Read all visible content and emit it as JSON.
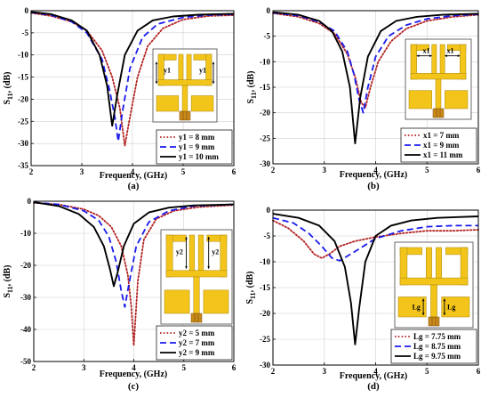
{
  "colors": {
    "series": [
      "#b22222",
      "#1a1aee",
      "#000000"
    ],
    "gold": "#f3c51b",
    "goldEdge": "#a8860c",
    "feed": "#c9891a"
  },
  "chart_data": [
    {
      "id": "a",
      "type": "line",
      "panel_label": "(a)",
      "xlabel": "Frequency, (GHz)",
      "ylabel": "S11, (dB)",
      "xlim": [
        2,
        6
      ],
      "ylim": [
        -35,
        0
      ],
      "xticks": [
        2,
        3,
        4,
        5,
        6
      ],
      "yticks": [
        0,
        -5,
        -10,
        -15,
        -20,
        -25,
        -30,
        -35
      ],
      "grid": true,
      "legend_position": "bottom-right",
      "inset_label": "y1",
      "series": [
        {
          "name": "y1 = 8 mm",
          "style": "dotted",
          "x": [
            2,
            2.4,
            2.8,
            3.1,
            3.4,
            3.6,
            3.75,
            3.85,
            3.95,
            4.1,
            4.3,
            4.6,
            5,
            5.5,
            6
          ],
          "y": [
            -0.5,
            -1.2,
            -2.5,
            -4.5,
            -9,
            -15,
            -22,
            -30.5,
            -24,
            -15,
            -8,
            -4,
            -2,
            -1.2,
            -1
          ]
        },
        {
          "name": "y1 = 9 mm",
          "style": "dashed",
          "x": [
            2,
            2.4,
            2.8,
            3.1,
            3.4,
            3.55,
            3.65,
            3.72,
            3.8,
            3.95,
            4.2,
            4.5,
            5,
            5.5,
            6
          ],
          "y": [
            -0.4,
            -1,
            -2.5,
            -5,
            -11,
            -18,
            -24,
            -29.5,
            -23,
            -13,
            -6,
            -3,
            -1.5,
            -1,
            -0.8
          ]
        },
        {
          "name": "y1 = 10 mm",
          "style": "solid",
          "x": [
            2,
            2.4,
            2.8,
            3.1,
            3.35,
            3.5,
            3.6,
            3.7,
            3.85,
            4.1,
            4.4,
            4.8,
            5.3,
            6
          ],
          "y": [
            -0.3,
            -0.8,
            -2.2,
            -4.5,
            -10,
            -17,
            -26,
            -19,
            -10,
            -4.5,
            -2.2,
            -1.3,
            -0.9,
            -0.7
          ]
        }
      ]
    },
    {
      "id": "b",
      "type": "line",
      "panel_label": "(b)",
      "xlabel": "Frequency, (GHz)",
      "ylabel": "S11, (dB)",
      "xlim": [
        2,
        6
      ],
      "ylim": [
        -30,
        0
      ],
      "xticks": [
        2,
        3,
        4,
        5,
        6
      ],
      "yticks": [
        0,
        -5,
        -10,
        -15,
        -20,
        -25,
        -30
      ],
      "grid": true,
      "legend_position": "bottom-right",
      "inset_label": "x1",
      "series": [
        {
          "name": "x1 = 7 mm",
          "style": "dotted",
          "x": [
            2,
            2.5,
            2.9,
            3.2,
            3.45,
            3.6,
            3.72,
            3.8,
            3.9,
            4.05,
            4.3,
            4.6,
            5,
            5.5,
            6
          ],
          "y": [
            -0.5,
            -1.2,
            -2.5,
            -4.5,
            -8.5,
            -13,
            -18,
            -19,
            -15,
            -10,
            -6,
            -3.5,
            -2,
            -1.2,
            -0.8
          ]
        },
        {
          "name": "x1 = 9 mm",
          "style": "dashed",
          "x": [
            2,
            2.5,
            2.9,
            3.2,
            3.45,
            3.58,
            3.68,
            3.76,
            3.85,
            4,
            4.25,
            4.6,
            5,
            5.5,
            6
          ],
          "y": [
            -0.4,
            -1,
            -2.2,
            -4,
            -8,
            -12.5,
            -17.5,
            -20,
            -15,
            -9,
            -5,
            -2.8,
            -1.6,
            -1,
            -0.7
          ]
        },
        {
          "name": "x1 = 11 mm",
          "style": "solid",
          "x": [
            2,
            2.5,
            2.9,
            3.15,
            3.35,
            3.5,
            3.6,
            3.7,
            3.85,
            4.1,
            4.4,
            4.8,
            5.3,
            6
          ],
          "y": [
            -0.3,
            -0.8,
            -2,
            -4,
            -8,
            -15,
            -26,
            -17,
            -9,
            -4,
            -2,
            -1.2,
            -0.8,
            -0.6
          ]
        }
      ]
    },
    {
      "id": "c",
      "type": "line",
      "panel_label": "(c)",
      "xlabel": "Frequency, (GHz)",
      "ylabel": "S11, (dB)",
      "xlim": [
        2,
        6
      ],
      "ylim": [
        -50,
        0
      ],
      "xticks": [
        2,
        3,
        4,
        5,
        6
      ],
      "yticks": [
        0,
        -10,
        -20,
        -30,
        -40,
        -50
      ],
      "grid": true,
      "legend_position": "bottom-right",
      "inset_label": "y2",
      "series": [
        {
          "name": "y2 = 5 mm",
          "style": "dotted",
          "x": [
            2,
            2.5,
            3,
            3.3,
            3.55,
            3.75,
            3.88,
            3.95,
            4,
            4.08,
            4.2,
            4.45,
            4.8,
            5.3,
            6
          ],
          "y": [
            -0.5,
            -1,
            -2.5,
            -4.5,
            -8,
            -14,
            -23,
            -33,
            -45,
            -25,
            -12,
            -5.5,
            -3,
            -1.8,
            -1.2
          ]
        },
        {
          "name": "y2 = 7 mm",
          "style": "dashed",
          "x": [
            2,
            2.5,
            3,
            3.3,
            3.5,
            3.65,
            3.75,
            3.82,
            3.9,
            4.05,
            4.3,
            4.7,
            5.2,
            6
          ],
          "y": [
            -0.4,
            -1,
            -3,
            -6,
            -11,
            -19,
            -28,
            -33,
            -26,
            -14,
            -6.5,
            -3,
            -1.5,
            -1
          ]
        },
        {
          "name": "y2 = 9 mm",
          "style": "solid",
          "x": [
            2,
            2.5,
            2.9,
            3.2,
            3.4,
            3.52,
            3.6,
            3.68,
            3.8,
            4,
            4.3,
            4.7,
            5.2,
            6
          ],
          "y": [
            -0.3,
            -1.5,
            -4,
            -8,
            -14,
            -21,
            -26.5,
            -22,
            -14,
            -7,
            -3.5,
            -2,
            -1.3,
            -1
          ]
        }
      ]
    },
    {
      "id": "d",
      "type": "line",
      "panel_label": "(d)",
      "xlabel": "Frequency, (GHz)",
      "ylabel": "S11, (dB)",
      "xlim": [
        2,
        6
      ],
      "ylim": [
        -30,
        0
      ],
      "xticks": [
        2,
        3,
        4,
        5,
        6
      ],
      "yticks": [
        0,
        -5,
        -10,
        -15,
        -20,
        -25,
        -30
      ],
      "grid": true,
      "legend_position": "bottom-right",
      "inset_label": "Lg",
      "series": [
        {
          "name": "Lg = 7.75 mm",
          "style": "dotted",
          "x": [
            2,
            2.3,
            2.6,
            2.8,
            2.95,
            3.1,
            3.3,
            3.6,
            4,
            4.5,
            5,
            5.5,
            6
          ],
          "y": [
            -2,
            -3.5,
            -6,
            -8.5,
            -9.3,
            -8.5,
            -7,
            -6,
            -5.2,
            -4.5,
            -4,
            -4,
            -3.8
          ]
        },
        {
          "name": "Lg = 8.75 mm",
          "style": "dashed",
          "x": [
            2,
            2.4,
            2.7,
            2.95,
            3.15,
            3.3,
            3.6,
            4,
            4.5,
            5,
            5.5,
            6
          ],
          "y": [
            -1.5,
            -2.5,
            -4.5,
            -7,
            -9.3,
            -9.8,
            -8,
            -5.5,
            -4,
            -3.2,
            -3,
            -3
          ]
        },
        {
          "name": "Lg = 9.75 mm",
          "style": "solid",
          "x": [
            2,
            2.5,
            2.9,
            3.2,
            3.4,
            3.52,
            3.6,
            3.68,
            3.8,
            4,
            4.3,
            4.7,
            5.2,
            6
          ],
          "y": [
            -0.7,
            -1.5,
            -3,
            -6,
            -11,
            -18,
            -26,
            -19,
            -10,
            -5,
            -3,
            -2,
            -1.5,
            -1.2
          ]
        }
      ]
    }
  ]
}
